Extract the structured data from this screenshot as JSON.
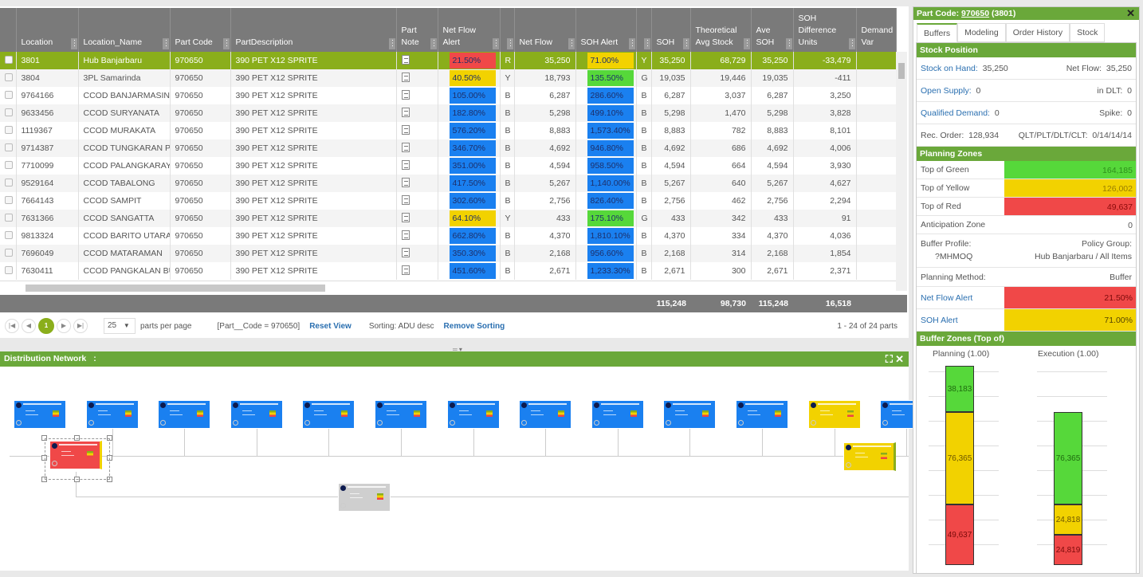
{
  "grid": {
    "columns": [
      "Location",
      "Location_Name",
      "Part Code",
      "PartDescription",
      "Part Note",
      "Net Flow Alert",
      "",
      "Net Flow",
      "SOH Alert",
      "",
      "SOH",
      "Theoretical Avg Stock",
      "Ave SOH",
      "SOH Difference Units",
      "Demand Var"
    ],
    "rows": [
      [
        "3801",
        "Hub Banjarbaru",
        "970650",
        "390 PET X12 SPRITE",
        "21.50%",
        "R",
        "35,250",
        "71.00%",
        "Y",
        "35,250",
        "68,729",
        "35,250",
        "-33,479",
        "red",
        "yellow"
      ],
      [
        "3804",
        "3PL Samarinda",
        "970650",
        "390 PET X12 SPRITE",
        "40.50%",
        "Y",
        "18,793",
        "135.50%",
        "G",
        "19,035",
        "19,446",
        "19,035",
        "-411",
        "yellow",
        "green"
      ],
      [
        "9764166",
        "CCOD BANJARMASIN CI",
        "970650",
        "390 PET X12 SPRITE",
        "105.00%",
        "B",
        "6,287",
        "286.60%",
        "B",
        "6,287",
        "3,037",
        "6,287",
        "3,250",
        "blue",
        "blue"
      ],
      [
        "9633456",
        "CCOD SURYANATA",
        "970650",
        "390 PET X12 SPRITE",
        "182.80%",
        "B",
        "5,298",
        "499.10%",
        "B",
        "5,298",
        "1,470",
        "5,298",
        "3,828",
        "blue",
        "blue"
      ],
      [
        "1119367",
        "CCOD MURAKATA",
        "970650",
        "390 PET X12 SPRITE",
        "576.20%",
        "B",
        "8,883",
        "1,573.40%",
        "B",
        "8,883",
        "782",
        "8,883",
        "8,101",
        "blue",
        "blue"
      ],
      [
        "9714387",
        "CCOD TUNGKARAN PAN",
        "970650",
        "390 PET X12 SPRITE",
        "346.70%",
        "B",
        "4,692",
        "946.80%",
        "B",
        "4,692",
        "686",
        "4,692",
        "4,006",
        "blue",
        "blue"
      ],
      [
        "7710099",
        "CCOD PALANGKARAYA",
        "970650",
        "390 PET X12 SPRITE",
        "351.00%",
        "B",
        "4,594",
        "958.50%",
        "B",
        "4,594",
        "664",
        "4,594",
        "3,930",
        "blue",
        "blue"
      ],
      [
        "9529164",
        "CCOD TABALONG",
        "970650",
        "390 PET X12 SPRITE",
        "417.50%",
        "B",
        "5,267",
        "1,140.00%",
        "B",
        "5,267",
        "640",
        "5,267",
        "4,627",
        "blue",
        "blue"
      ],
      [
        "7664143",
        "CCOD SAMPIT",
        "970650",
        "390 PET X12 SPRITE",
        "302.60%",
        "B",
        "2,756",
        "826.40%",
        "B",
        "2,756",
        "462",
        "2,756",
        "2,294",
        "blue",
        "blue"
      ],
      [
        "7631366",
        "CCOD SANGATTA",
        "970650",
        "390 PET X12 SPRITE",
        "64.10%",
        "Y",
        "433",
        "175.10%",
        "G",
        "433",
        "342",
        "433",
        "91",
        "yellow",
        "green"
      ],
      [
        "9813324",
        "CCOD BARITO UTARA",
        "970650",
        "390 PET X12 SPRITE",
        "662.80%",
        "B",
        "4,370",
        "1,810.10%",
        "B",
        "4,370",
        "334",
        "4,370",
        "4,036",
        "blue",
        "blue"
      ],
      [
        "7696049",
        "CCOD MATARAMAN",
        "970650",
        "390 PET X12 SPRITE",
        "350.30%",
        "B",
        "2,168",
        "956.60%",
        "B",
        "2,168",
        "314",
        "2,168",
        "1,854",
        "blue",
        "blue"
      ],
      [
        "7630411",
        "CCOD PANGKALAN BUN",
        "970650",
        "390 PET X12 SPRITE",
        "451.60%",
        "B",
        "2,671",
        "1,233.30%",
        "B",
        "2,671",
        "300",
        "2,671",
        "2,371",
        "blue",
        "blue"
      ]
    ],
    "totals": {
      "soh": "115,248",
      "theo": "98,730",
      "ave": "115,248",
      "diff": "16,518"
    }
  },
  "pager": {
    "page": "1",
    "per_page": "25",
    "per_page_label": "parts per page",
    "filter": "[Part__Code = 970650]",
    "reset": "Reset View",
    "sorting": "Sorting: ADU desc",
    "remove_sorting": "Remove Sorting",
    "summary": "1 - 24 of 24 parts"
  },
  "network": {
    "title": "Distribution Network",
    "title_suffix": ":"
  },
  "panel": {
    "title_prefix": "Part Code:",
    "part_code": "970650",
    "location": "(3801)",
    "tabs": [
      "Buffers",
      "Modeling",
      "Order History",
      "Stock"
    ],
    "stock_position": {
      "title": "Stock Position",
      "soh_label": "Stock on Hand:",
      "soh": "35,250",
      "nf_label": "Net Flow:",
      "nf": "35,250",
      "os_label": "Open Supply:",
      "os": "0",
      "dlt_label": "in DLT:",
      "dlt": "0",
      "qd_label": "Qualified Demand:",
      "qd": "0",
      "spike_label": "Spike:",
      "spike": "0",
      "rec_label": "Rec. Order:",
      "rec": "128,934",
      "lt_label": "QLT/PLT/DLT/CLT:",
      "lt": "0/14/14/14"
    },
    "planning_zones": {
      "title": "Planning Zones",
      "tog_label": "Top of Green",
      "tog": "164,185",
      "toy_label": "Top of Yellow",
      "toy": "126,002",
      "tor_label": "Top of Red",
      "tor": "49,637",
      "anti_label": "Anticipation Zone",
      "anti": "0",
      "bp_label": "Buffer Profile:",
      "bp": "?MHMOQ",
      "pg_label": "Policy Group:",
      "pg": "Hub Banjarbaru / All Items",
      "pm_label": "Planning Method:",
      "pm": "Buffer",
      "nfa_label": "Net Flow Alert",
      "nfa": "21.50%",
      "soha_label": "SOH Alert",
      "soha": "71.00%"
    },
    "buffer_zones": {
      "title": "Buffer Zones (Top of)",
      "planning_label": "Planning (1.00)",
      "execution_label": "Execution (1.00)",
      "planning": {
        "red": "49,637",
        "yellow": "76,365",
        "green": "38,183"
      },
      "execution": {
        "red": "24,819",
        "yellow": "24,818",
        "green": "76,365"
      }
    }
  },
  "colors": {
    "red": "#f04848",
    "yellow": "#f2d200",
    "green": "#56d83a",
    "blue": "#1a80f0",
    "header_green": "#6aa83a",
    "selected_row": "#8aae1b"
  }
}
